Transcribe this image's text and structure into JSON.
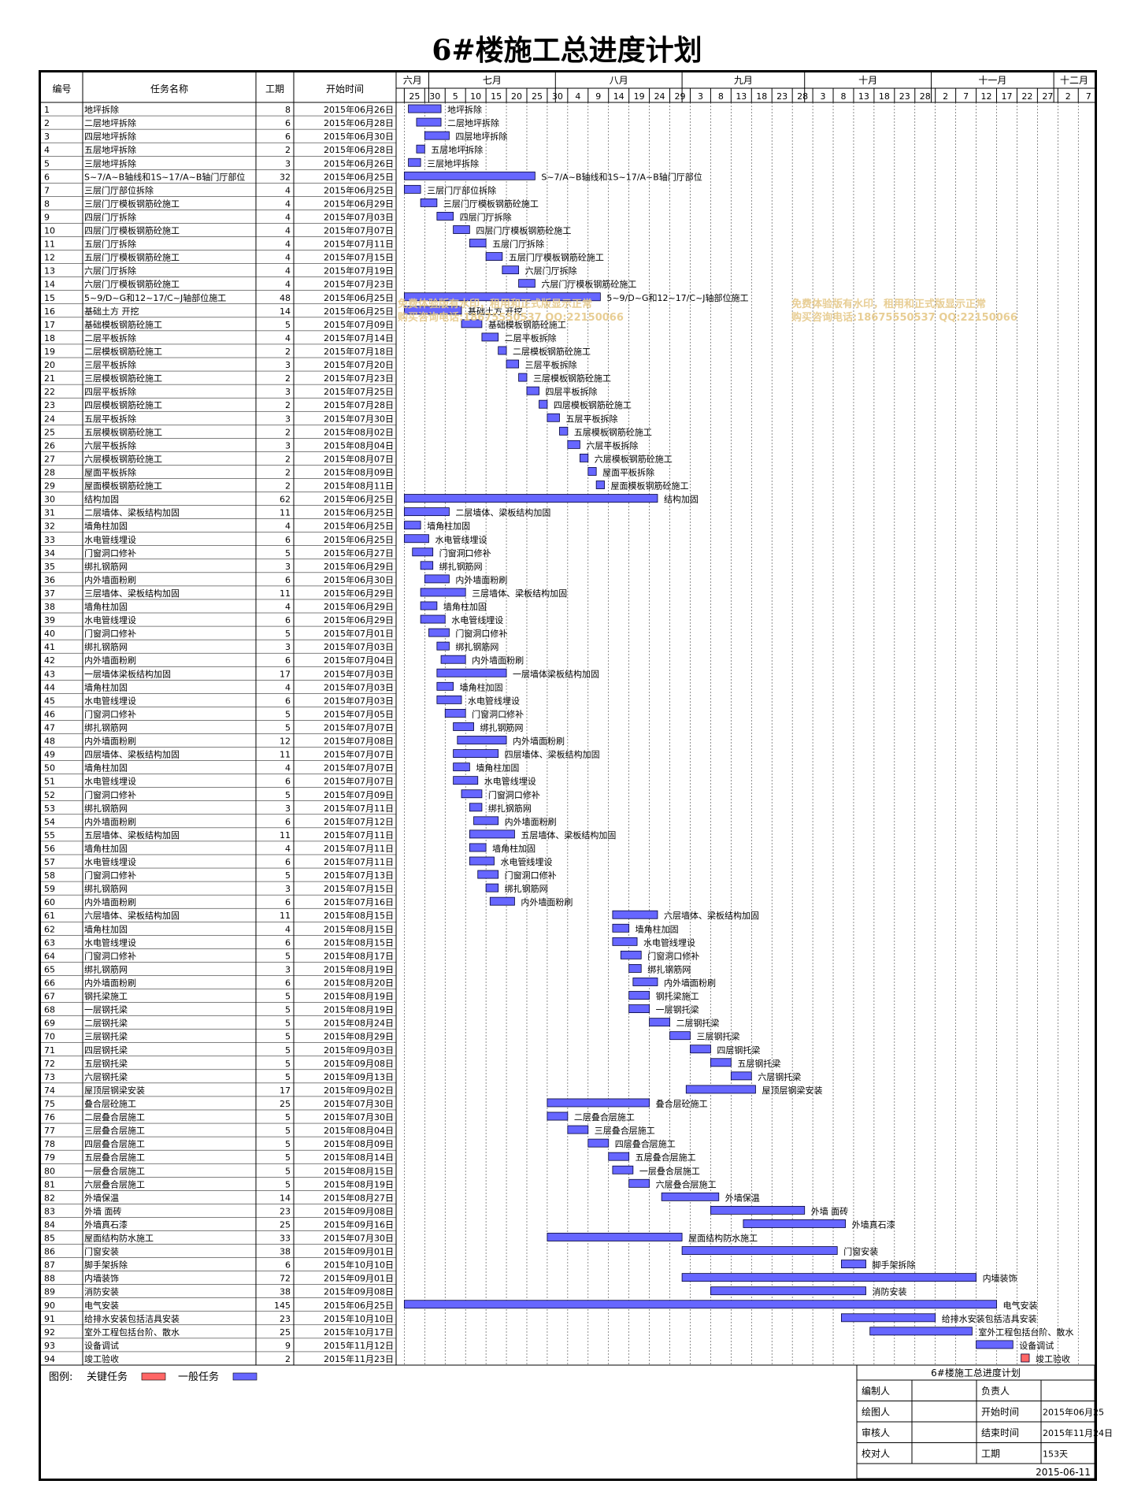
{
  "title": "6#楼施工总进度计划",
  "header": {
    "num": "编号",
    "name": "任务名称",
    "dur": "工期",
    "start": "开始时间"
  },
  "months": [
    {
      "label": "六月",
      "from": "2015-06-23",
      "to": "2015-07-01"
    },
    {
      "label": "七月",
      "from": "2015-07-01",
      "to": "2015-08-01"
    },
    {
      "label": "八月",
      "from": "2015-08-01",
      "to": "2015-09-01"
    },
    {
      "label": "九月",
      "from": "2015-09-01",
      "to": "2015-10-01"
    },
    {
      "label": "十月",
      "from": "2015-10-01",
      "to": "2015-11-01"
    },
    {
      "label": "十一月",
      "from": "2015-11-01",
      "to": "2015-12-01"
    },
    {
      "label": "十二月",
      "from": "2015-12-01",
      "to": "2015-12-11"
    }
  ],
  "days": [
    "2015-06-25",
    "2015-06-30",
    "2015-07-05",
    "2015-07-10",
    "2015-07-15",
    "2015-07-20",
    "2015-07-25",
    "2015-07-30",
    "2015-08-04",
    "2015-08-09",
    "2015-08-14",
    "2015-08-19",
    "2015-08-24",
    "2015-08-29",
    "2015-09-03",
    "2015-09-08",
    "2015-09-13",
    "2015-09-18",
    "2015-09-23",
    "2015-09-28",
    "2015-10-03",
    "2015-10-08",
    "2015-10-13",
    "2015-10-18",
    "2015-10-23",
    "2015-10-28",
    "2015-11-02",
    "2015-11-07",
    "2015-11-12",
    "2015-11-17",
    "2015-11-22",
    "2015-11-27",
    "2015-12-02",
    "2015-12-07"
  ],
  "day_labels": [
    "25",
    "30",
    "5",
    "10",
    "15",
    "20",
    "25",
    "30",
    "4",
    "9",
    "14",
    "19",
    "24",
    "29",
    "3",
    "8",
    "13",
    "18",
    "23",
    "28",
    "3",
    "8",
    "13",
    "18",
    "23",
    "28",
    "2",
    "7",
    "12",
    "17",
    "22",
    "27",
    "2",
    "7"
  ],
  "watermark": [
    "免费体验版有水印，租用和正式版显示正常",
    "购买咨询电话:18675550537 QQ:22150066"
  ],
  "legend": {
    "label": "图例:",
    "critical": "关键任务",
    "normal": "一般任务",
    "critical_color": "#ff6666",
    "normal_color": "#6666ff"
  },
  "info": {
    "title": "6#楼施工总进度计划",
    "rows": [
      [
        "编制人",
        "负责人",
        ""
      ],
      [
        "绘图人",
        "开始时间",
        "2015年06月25"
      ],
      [
        "审核人",
        "结束时间",
        "2015年11月24日"
      ],
      [
        "校对人",
        "工期",
        "153天"
      ]
    ],
    "date": "2015-06-11"
  },
  "chart_data": {
    "type": "gantt",
    "title": "6#楼施工总进度计划",
    "x_range": [
      "2015-06-23",
      "2015-12-11"
    ],
    "tasks": [
      {
        "id": "1",
        "name": "地坪拆除",
        "dur": 8,
        "start": "2015年06月26日",
        "s": "2015-06-26",
        "label": "地坪拆除"
      },
      {
        "id": "2",
        "name": "二层地坪拆除",
        "dur": 6,
        "start": "2015年06月28日",
        "s": "2015-06-28",
        "label": "二层地坪拆除"
      },
      {
        "id": "3",
        "name": "四层地坪拆除",
        "dur": 6,
        "start": "2015年06月30日",
        "s": "2015-06-30",
        "label": "四层地坪拆除"
      },
      {
        "id": "4",
        "name": "五层地坪拆除",
        "dur": 2,
        "start": "2015年06月28日",
        "s": "2015-06-28",
        "label": "五层地坪拆除"
      },
      {
        "id": "5",
        "name": "三层地坪拆除",
        "dur": 3,
        "start": "2015年06月26日",
        "s": "2015-06-26",
        "label": "三层地坪拆除"
      },
      {
        "id": "6",
        "name": "S~7/A~B轴线和1S~17/A~B轴门厅部位",
        "dur": 32,
        "start": "2015年06月25日",
        "s": "2015-06-25",
        "label": "S~7/A~B轴线和1S~17/A~B轴门厅部位"
      },
      {
        "id": "7",
        "name": "三层门厅部位拆除",
        "dur": 4,
        "start": "2015年06月25日",
        "s": "2015-06-25",
        "label": "三层门厅部位拆除"
      },
      {
        "id": "8",
        "name": "三层门厅模板钢筋砼施工",
        "dur": 4,
        "start": "2015年06月29日",
        "s": "2015-06-29",
        "label": "三层门厅模板钢筋砼施工"
      },
      {
        "id": "9",
        "name": "四层门厅拆除",
        "dur": 4,
        "start": "2015年07月03日",
        "s": "2015-07-03",
        "label": "四层门厅拆除"
      },
      {
        "id": "10",
        "name": "四层门厅模板钢筋砼施工",
        "dur": 4,
        "start": "2015年07月07日",
        "s": "2015-07-07",
        "label": "四层门厅模板钢筋砼施工"
      },
      {
        "id": "11",
        "name": "五层门厅拆除",
        "dur": 4,
        "start": "2015年07月11日",
        "s": "2015-07-11",
        "label": "五层门厅拆除"
      },
      {
        "id": "12",
        "name": "五层门厅模板钢筋砼施工",
        "dur": 4,
        "start": "2015年07月15日",
        "s": "2015-07-15",
        "label": "五层门厅模板钢筋砼施工"
      },
      {
        "id": "13",
        "name": "六层门厅拆除",
        "dur": 4,
        "start": "2015年07月19日",
        "s": "2015-07-19",
        "label": "六层门厅拆除"
      },
      {
        "id": "14",
        "name": "六层门厅模板钢筋砼施工",
        "dur": 4,
        "start": "2015年07月23日",
        "s": "2015-07-23",
        "label": "六层门厅模板钢筋砼施工"
      },
      {
        "id": "15",
        "name": "5~9/D~G和12~17/C~J轴部位施工",
        "dur": 48,
        "start": "2015年06月25日",
        "s": "2015-06-25",
        "label": "5~9/D~G和12~17/C~J轴部位施工"
      },
      {
        "id": "16",
        "name": "基础土方 开挖",
        "dur": 14,
        "start": "2015年06月25日",
        "s": "2015-06-25",
        "label": "基础土方 开挖"
      },
      {
        "id": "17",
        "name": "基础模板钢筋砼施工",
        "dur": 5,
        "start": "2015年07月09日",
        "s": "2015-07-09",
        "label": "基础模板钢筋砼施工"
      },
      {
        "id": "18",
        "name": "二层平板拆除",
        "dur": 4,
        "start": "2015年07月14日",
        "s": "2015-07-14",
        "label": "二层平板拆除"
      },
      {
        "id": "19",
        "name": "二层模板钢筋砼施工",
        "dur": 2,
        "start": "2015年07月18日",
        "s": "2015-07-18",
        "label": "二层模板钢筋砼施工"
      },
      {
        "id": "20",
        "name": "三层平板拆除",
        "dur": 3,
        "start": "2015年07月20日",
        "s": "2015-07-20",
        "label": "三层平板拆除"
      },
      {
        "id": "21",
        "name": "三层模板钢筋砼施工",
        "dur": 2,
        "start": "2015年07月23日",
        "s": "2015-07-23",
        "label": "三层模板钢筋砼施工"
      },
      {
        "id": "22",
        "name": "四层平板拆除",
        "dur": 3,
        "start": "2015年07月25日",
        "s": "2015-07-25",
        "label": "四层平板拆除"
      },
      {
        "id": "23",
        "name": "四层模板钢筋砼施工",
        "dur": 2,
        "start": "2015年07月28日",
        "s": "2015-07-28",
        "label": "四层模板钢筋砼施工"
      },
      {
        "id": "24",
        "name": "五层平板拆除",
        "dur": 3,
        "start": "2015年07月30日",
        "s": "2015-07-30",
        "label": "五层平板拆除"
      },
      {
        "id": "25",
        "name": "五层模板钢筋砼施工",
        "dur": 2,
        "start": "2015年08月02日",
        "s": "2015-08-02",
        "label": "五层模板钢筋砼施工"
      },
      {
        "id": "26",
        "name": "六层平板拆除",
        "dur": 3,
        "start": "2015年08月04日",
        "s": "2015-08-04",
        "label": "六层平板拆除"
      },
      {
        "id": "27",
        "name": "六层模板钢筋砼施工",
        "dur": 2,
        "start": "2015年08月07日",
        "s": "2015-08-07",
        "label": "六层模板钢筋砼施工"
      },
      {
        "id": "28",
        "name": "屋面平板拆除",
        "dur": 2,
        "start": "2015年08月09日",
        "s": "2015-08-09",
        "label": "屋面平板拆除"
      },
      {
        "id": "29",
        "name": "屋面模板钢筋砼施工",
        "dur": 2,
        "start": "2015年08月11日",
        "s": "2015-08-11",
        "label": "屋面模板钢筋砼施工"
      },
      {
        "id": "30",
        "name": "结构加固",
        "dur": 62,
        "start": "2015年06月25日",
        "s": "2015-06-25",
        "label": "结构加固"
      },
      {
        "id": "31",
        "name": "二层墙体、梁板结构加固",
        "dur": 11,
        "start": "2015年06月25日",
        "s": "2015-06-25",
        "label": "二层墙体、梁板结构加固"
      },
      {
        "id": "32",
        "name": "墙角柱加固",
        "dur": 4,
        "start": "2015年06月25日",
        "s": "2015-06-25",
        "label": "墙角柱加固"
      },
      {
        "id": "33",
        "name": "水电管线埋设",
        "dur": 6,
        "start": "2015年06月25日",
        "s": "2015-06-25",
        "label": "水电管线埋设"
      },
      {
        "id": "34",
        "name": "门窗洞口修补",
        "dur": 5,
        "start": "2015年06月27日",
        "s": "2015-06-27",
        "label": "门窗洞口修补"
      },
      {
        "id": "35",
        "name": "绑扎钢筋网",
        "dur": 3,
        "start": "2015年06月29日",
        "s": "2015-06-29",
        "label": "绑扎钢筋网"
      },
      {
        "id": "36",
        "name": "内外墙面粉刷",
        "dur": 6,
        "start": "2015年06月30日",
        "s": "2015-06-30",
        "label": "内外墙面粉刷"
      },
      {
        "id": "37",
        "name": "三层墙体、梁板结构加固",
        "dur": 11,
        "start": "2015年06月29日",
        "s": "2015-06-29",
        "label": "三层墙体、梁板结构加固"
      },
      {
        "id": "38",
        "name": "墙角柱加固",
        "dur": 4,
        "start": "2015年06月29日",
        "s": "2015-06-29",
        "label": "墙角柱加固"
      },
      {
        "id": "39",
        "name": "水电管线埋设",
        "dur": 6,
        "start": "2015年06月29日",
        "s": "2015-06-29",
        "label": "水电管线埋设"
      },
      {
        "id": "40",
        "name": "门窗洞口修补",
        "dur": 5,
        "start": "2015年07月01日",
        "s": "2015-07-01",
        "label": "门窗洞口修补"
      },
      {
        "id": "41",
        "name": "绑扎钢筋网",
        "dur": 3,
        "start": "2015年07月03日",
        "s": "2015-07-03",
        "label": "绑扎钢筋网"
      },
      {
        "id": "42",
        "name": "内外墙面粉刷",
        "dur": 6,
        "start": "2015年07月04日",
        "s": "2015-07-04",
        "label": "内外墙面粉刷"
      },
      {
        "id": "43",
        "name": "一层墙体梁板结构加固",
        "dur": 17,
        "start": "2015年07月03日",
        "s": "2015-07-03",
        "label": "一层墙体梁板结构加固"
      },
      {
        "id": "44",
        "name": "墙角柱加固",
        "dur": 4,
        "start": "2015年07月03日",
        "s": "2015-07-03",
        "label": "墙角柱加固"
      },
      {
        "id": "45",
        "name": "水电管线埋设",
        "dur": 6,
        "start": "2015年07月03日",
        "s": "2015-07-03",
        "label": "水电管线埋设"
      },
      {
        "id": "46",
        "name": "门窗洞口修补",
        "dur": 5,
        "start": "2015年07月05日",
        "s": "2015-07-05",
        "label": "门窗洞口修补"
      },
      {
        "id": "47",
        "name": "绑扎钢筋网",
        "dur": 5,
        "start": "2015年07月07日",
        "s": "2015-07-07",
        "label": "绑扎钢筋网"
      },
      {
        "id": "48",
        "name": "内外墙面粉刷",
        "dur": 12,
        "start": "2015年07月08日",
        "s": "2015-07-08",
        "label": "内外墙面粉刷"
      },
      {
        "id": "49",
        "name": "四层墙体、梁板结构加固",
        "dur": 11,
        "start": "2015年07月07日",
        "s": "2015-07-07",
        "label": "四层墙体、梁板结构加固"
      },
      {
        "id": "50",
        "name": "墙角柱加固",
        "dur": 4,
        "start": "2015年07月07日",
        "s": "2015-07-07",
        "label": "墙角柱加固"
      },
      {
        "id": "51",
        "name": "水电管线埋设",
        "dur": 6,
        "start": "2015年07月07日",
        "s": "2015-07-07",
        "label": "水电管线埋设"
      },
      {
        "id": "52",
        "name": "门窗洞口修补",
        "dur": 5,
        "start": "2015年07月09日",
        "s": "2015-07-09",
        "label": "门窗洞口修补"
      },
      {
        "id": "53",
        "name": "绑扎钢筋网",
        "dur": 3,
        "start": "2015年07月11日",
        "s": "2015-07-11",
        "label": "绑扎钢筋网"
      },
      {
        "id": "54",
        "name": "内外墙面粉刷",
        "dur": 6,
        "start": "2015年07月12日",
        "s": "2015-07-12",
        "label": "内外墙面粉刷"
      },
      {
        "id": "55",
        "name": "五层墙体、梁板结构加固",
        "dur": 11,
        "start": "2015年07月11日",
        "s": "2015-07-11",
        "label": "五层墙体、梁板结构加固"
      },
      {
        "id": "56",
        "name": "墙角柱加固",
        "dur": 4,
        "start": "2015年07月11日",
        "s": "2015-07-11",
        "label": "墙角柱加固"
      },
      {
        "id": "57",
        "name": "水电管线埋设",
        "dur": 6,
        "start": "2015年07月11日",
        "s": "2015-07-11",
        "label": "水电管线埋设"
      },
      {
        "id": "58",
        "name": "门窗洞口修补",
        "dur": 5,
        "start": "2015年07月13日",
        "s": "2015-07-13",
        "label": "门窗洞口修补"
      },
      {
        "id": "59",
        "name": "绑扎钢筋网",
        "dur": 3,
        "start": "2015年07月15日",
        "s": "2015-07-15",
        "label": "绑扎钢筋网"
      },
      {
        "id": "60",
        "name": "内外墙面粉刷",
        "dur": 6,
        "start": "2015年07月16日",
        "s": "2015-07-16",
        "label": "内外墙面粉刷"
      },
      {
        "id": "61",
        "name": "六层墙体、梁板结构加固",
        "dur": 11,
        "start": "2015年08月15日",
        "s": "2015-08-15",
        "label": "六层墙体、梁板结构加固"
      },
      {
        "id": "62",
        "name": "墙角柱加固",
        "dur": 4,
        "start": "2015年08月15日",
        "s": "2015-08-15",
        "label": "墙角柱加固"
      },
      {
        "id": "63",
        "name": "水电管线埋设",
        "dur": 6,
        "start": "2015年08月15日",
        "s": "2015-08-15",
        "label": "水电管线埋设"
      },
      {
        "id": "64",
        "name": "门窗洞口修补",
        "dur": 5,
        "start": "2015年08月17日",
        "s": "2015-08-17",
        "label": "门窗洞口修补"
      },
      {
        "id": "65",
        "name": "绑扎钢筋网",
        "dur": 3,
        "start": "2015年08月19日",
        "s": "2015-08-19",
        "label": "绑扎钢筋网"
      },
      {
        "id": "66",
        "name": "内外墙面粉刷",
        "dur": 6,
        "start": "2015年08月20日",
        "s": "2015-08-20",
        "label": "内外墙面粉刷"
      },
      {
        "id": "67",
        "name": "钢托梁施工",
        "dur": 5,
        "start": "2015年08月19日",
        "s": "2015-08-19",
        "label": "钢托梁施工"
      },
      {
        "id": "68",
        "name": "一层钢托梁",
        "dur": 5,
        "start": "2015年08月19日",
        "s": "2015-08-19",
        "label": "一层钢托梁"
      },
      {
        "id": "69",
        "name": "二层钢托梁",
        "dur": 5,
        "start": "2015年08月24日",
        "s": "2015-08-24",
        "label": "二层钢托梁"
      },
      {
        "id": "70",
        "name": "三层钢托梁",
        "dur": 5,
        "start": "2015年08月29日",
        "s": "2015-08-29",
        "label": "三层钢托梁"
      },
      {
        "id": "71",
        "name": "四层钢托梁",
        "dur": 5,
        "start": "2015年09月03日",
        "s": "2015-09-03",
        "label": "四层钢托梁"
      },
      {
        "id": "72",
        "name": "五层钢托梁",
        "dur": 5,
        "start": "2015年09月08日",
        "s": "2015-09-08",
        "label": "五层钢托梁"
      },
      {
        "id": "73",
        "name": "六层钢托梁",
        "dur": 5,
        "start": "2015年09月13日",
        "s": "2015-09-13",
        "label": "六层钢托梁"
      },
      {
        "id": "74",
        "name": "屋顶层钢梁安装",
        "dur": 17,
        "start": "2015年09月02日",
        "s": "2015-09-02",
        "label": "屋顶层钢梁安装"
      },
      {
        "id": "75",
        "name": "叠合层砼施工",
        "dur": 25,
        "start": "2015年07月30日",
        "s": "2015-07-30",
        "label": "叠合层砼施工"
      },
      {
        "id": "76",
        "name": "二层叠合层施工",
        "dur": 5,
        "start": "2015年07月30日",
        "s": "2015-07-30",
        "label": "二层叠合层施工"
      },
      {
        "id": "77",
        "name": "三层叠合层施工",
        "dur": 5,
        "start": "2015年08月04日",
        "s": "2015-08-04",
        "label": "三层叠合层施工"
      },
      {
        "id": "78",
        "name": "四层叠合层施工",
        "dur": 5,
        "start": "2015年08月09日",
        "s": "2015-08-09",
        "label": "四层叠合层施工"
      },
      {
        "id": "79",
        "name": "五层叠合层施工",
        "dur": 5,
        "start": "2015年08月14日",
        "s": "2015-08-14",
        "label": "五层叠合层施工"
      },
      {
        "id": "80",
        "name": "一层叠合层施工",
        "dur": 5,
        "start": "2015年08月15日",
        "s": "2015-08-15",
        "label": "一层叠合层施工"
      },
      {
        "id": "81",
        "name": "六层叠合层施工",
        "dur": 5,
        "start": "2015年08月19日",
        "s": "2015-08-19",
        "label": "六层叠合层施工"
      },
      {
        "id": "82",
        "name": "外墙保温",
        "dur": 14,
        "start": "2015年08月27日",
        "s": "2015-08-27",
        "label": "外墙保温"
      },
      {
        "id": "83",
        "name": "外墙 面砖",
        "dur": 23,
        "start": "2015年09月08日",
        "s": "2015-09-08",
        "label": "外墙 面砖"
      },
      {
        "id": "84",
        "name": "外墙真石漆",
        "dur": 25,
        "start": "2015年09月16日",
        "s": "2015-09-16",
        "label": "外墙真石漆"
      },
      {
        "id": "85",
        "name": "屋面结构防水施工",
        "dur": 33,
        "start": "2015年07月30日",
        "s": "2015-07-30",
        "label": "屋面结构防水施工"
      },
      {
        "id": "86",
        "name": "门窗安装",
        "dur": 38,
        "start": "2015年09月01日",
        "s": "2015-09-01",
        "label": "门窗安装"
      },
      {
        "id": "87",
        "name": "脚手架拆除",
        "dur": 6,
        "start": "2015年10月10日",
        "s": "2015-10-10",
        "label": "脚手架拆除"
      },
      {
        "id": "88",
        "name": "内墙装饰",
        "dur": 72,
        "start": "2015年09月01日",
        "s": "2015-09-01",
        "label": "内墙装饰"
      },
      {
        "id": "89",
        "name": "消防安装",
        "dur": 38,
        "start": "2015年09月08日",
        "s": "2015-09-08",
        "label": "消防安装"
      },
      {
        "id": "90",
        "name": "电气安装",
        "dur": 145,
        "start": "2015年06月25日",
        "s": "2015-06-25",
        "label": "电气安装"
      },
      {
        "id": "91",
        "name": "给排水安装包括洁具安装",
        "dur": 23,
        "start": "2015年10月10日",
        "s": "2015-10-10",
        "label": "给排水安装包括洁具安装"
      },
      {
        "id": "92",
        "name": "室外工程包括台阶、散水",
        "dur": 25,
        "start": "2015年10月17日",
        "s": "2015-10-17",
        "label": "室外工程包括台阶、散水"
      },
      {
        "id": "93",
        "name": "设备调试",
        "dur": 9,
        "start": "2015年11月12日",
        "s": "2015-11-12",
        "label": "设备调试"
      },
      {
        "id": "94",
        "name": "竣工验收",
        "dur": 2,
        "start": "2015年11月23日",
        "s": "2015-11-23",
        "label": "竣工验收",
        "critical": true
      }
    ]
  }
}
